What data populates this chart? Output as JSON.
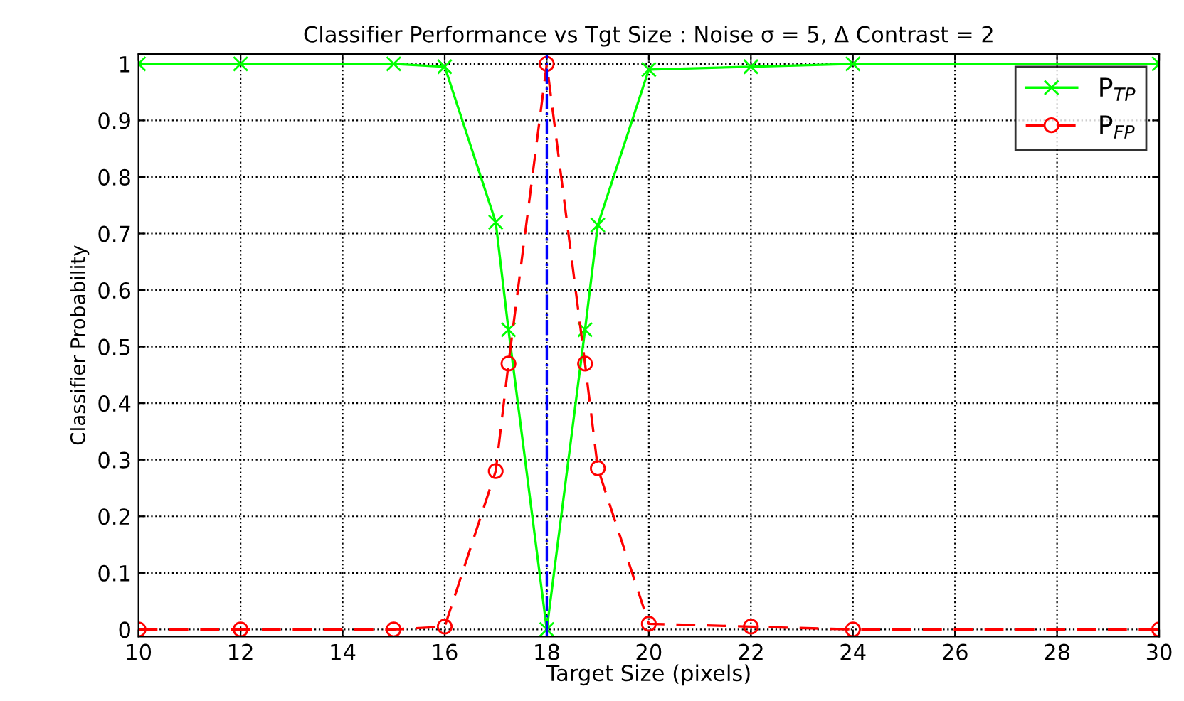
{
  "chart_data": {
    "type": "line",
    "title": "Classifier Performance vs Tgt Size : Noise σ = 5, Δ Contrast = 2",
    "xlabel": "Target Size (pixels)",
    "ylabel": "Classifier Probability",
    "x": [
      10,
      12,
      15,
      16,
      17,
      17.25,
      18,
      18.75,
      19,
      20,
      22,
      24,
      30
    ],
    "series": [
      {
        "name": "P$_{TP}$",
        "color": "#00ff00",
        "marker": "cross",
        "line_style": "solid",
        "values": [
          1,
          1,
          1,
          0.995,
          0.72,
          0.53,
          0,
          0.53,
          0.715,
          0.99,
          0.995,
          1,
          1
        ]
      },
      {
        "name": "P$_{FP}$",
        "color": "#ff0000",
        "marker": "circle",
        "line_style": "dashed",
        "values": [
          0,
          0,
          0,
          0.005,
          0.28,
          0.47,
          1,
          0.47,
          0.285,
          0.01,
          0.005,
          0,
          0
        ]
      }
    ],
    "xlim": [
      10,
      30
    ],
    "xticks": [
      10,
      12,
      14,
      16,
      18,
      20,
      22,
      24,
      26,
      28,
      30
    ],
    "ylim": [
      -0.0125,
      1.0175
    ],
    "yticks": [
      0,
      0.1,
      0.2,
      0.3,
      0.4,
      0.5,
      0.6,
      0.7,
      0.8,
      0.9,
      1
    ],
    "ref_lines": [
      {
        "axis": "x",
        "value": 18,
        "color": "#0000ff",
        "line_style": "dashdot"
      }
    ],
    "grid": true,
    "legend": "top right"
  }
}
